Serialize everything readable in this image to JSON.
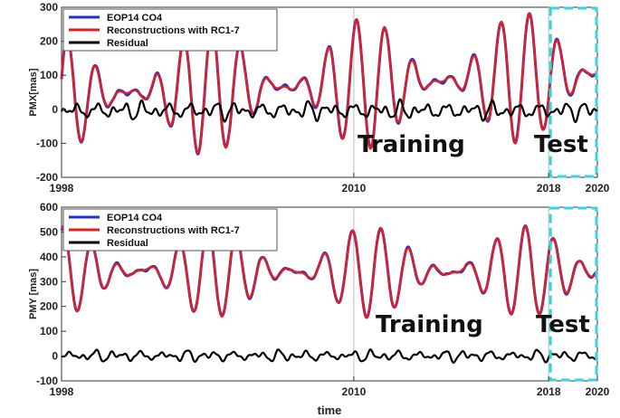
{
  "chart_data": [
    {
      "type": "line",
      "ylabel": "PMX[mas]",
      "xlabel": "",
      "xlim": [
        1998,
        2020
      ],
      "ylim": [
        -200,
        300
      ],
      "x_ticks": [
        "1998",
        "2010",
        "2018",
        "2020"
      ],
      "y_ticks": [
        "-200",
        "-100",
        "0",
        "100",
        "200",
        "300"
      ],
      "grid": "vertical lines at 2010 and 2018",
      "legend_position": "top-left",
      "legend": [
        "EOP14 CO4",
        "Reconstructions with RC1-7",
        "Residual"
      ],
      "annotations": [
        "Training",
        "Test"
      ],
      "test_region": [
        2018,
        2020
      ],
      "series": [
        {
          "name": "EOP14 CO4",
          "color": "#1f2fe0",
          "model": {
            "mean": 40,
            "annual_amp": 20,
            "chandler_amp": 175,
            "chandler_period": 1.185,
            "drift_per_year": 2.8
          }
        },
        {
          "name": "Reconstructions with RC1-7",
          "color": "#e01f1f",
          "model": {
            "mean": 40,
            "annual_amp": 20,
            "chandler_amp": 175,
            "chandler_period": 1.185,
            "drift_per_year": 2.8
          }
        },
        {
          "name": "Residual",
          "color": "#000000",
          "approx_range": [
            -40,
            40
          ]
        }
      ]
    },
    {
      "type": "line",
      "ylabel": "PMY [mas]",
      "xlabel": "time",
      "xlim": [
        1998,
        2020
      ],
      "ylim": [
        -100,
        600
      ],
      "x_ticks": [
        "1998",
        "2010",
        "2018",
        "2020"
      ],
      "y_ticks": [
        "-100",
        "0",
        "100",
        "200",
        "300",
        "400",
        "500",
        "600"
      ],
      "grid": "vertical lines at 2010 and 2018",
      "legend_position": "top-left",
      "legend": [
        "EOP14 CO4",
        "Reconstructions with RC1-7",
        "Residual"
      ],
      "annotations": [
        "Training",
        "Test"
      ],
      "test_region": [
        2018,
        2020
      ],
      "series": [
        {
          "name": "EOP14 CO4",
          "color": "#1f2fe0",
          "model": {
            "mean": 340,
            "annual_amp": 20,
            "chandler_amp": 170,
            "chandler_period": 1.185,
            "drift_per_year": 0
          }
        },
        {
          "name": "Reconstructions with RC1-7",
          "color": "#e01f1f",
          "model": {
            "mean": 340,
            "annual_amp": 20,
            "chandler_amp": 170,
            "chandler_period": 1.185,
            "drift_per_year": 0
          }
        },
        {
          "name": "Residual",
          "color": "#000000",
          "approx_range": [
            -30,
            40
          ]
        }
      ]
    }
  ],
  "colors": {
    "test_box": "#33d6e0",
    "grid": "#bbbbbb",
    "axis": "#333333"
  }
}
